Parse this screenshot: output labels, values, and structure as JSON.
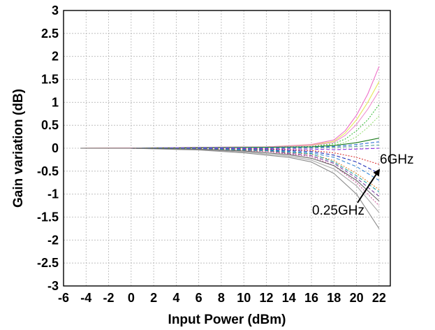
{
  "chart_data": {
    "type": "line",
    "title": "",
    "xlabel": "Input Power (dBm)",
    "ylabel": "Gain variation (dB)",
    "xlim": [
      -6,
      23
    ],
    "ylim": [
      -3,
      3
    ],
    "xticks": [
      -6,
      -4,
      -2,
      0,
      2,
      4,
      6,
      8,
      10,
      12,
      14,
      16,
      18,
      20,
      22
    ],
    "yticks": [
      3,
      2.5,
      2,
      1.5,
      1,
      0.5,
      0,
      -0.5,
      -1,
      -1.5,
      -2,
      -2.5,
      -3
    ],
    "ytick_labels": [
      "3",
      "2.5",
      "2",
      "1.5",
      "1",
      "0.5",
      "0",
      "-0.5",
      "-1",
      "-1.5",
      "-2",
      "-2.5",
      "-3"
    ],
    "grid": true,
    "annotations": [
      {
        "text": "6GHz",
        "x": 22.1,
        "y": -0.27
      },
      {
        "text": "0.25GHz",
        "x": 17.3,
        "y": -1.4
      }
    ],
    "series": [
      {
        "color": "#ee6fc8",
        "style": "solid",
        "x": [
          -4.5,
          0,
          6,
          12,
          16,
          18,
          19,
          20,
          21,
          22
        ],
        "y": [
          0,
          0.005,
          0.02,
          0.03,
          0.08,
          0.18,
          0.38,
          0.72,
          1.18,
          1.78
        ]
      },
      {
        "color": "#e6e65a",
        "style": "solid",
        "x": [
          -4.5,
          0,
          6,
          12,
          16,
          18,
          19,
          20,
          21,
          22
        ],
        "y": [
          0,
          0.005,
          0.02,
          0.03,
          0.07,
          0.15,
          0.33,
          0.62,
          1.0,
          1.45
        ]
      },
      {
        "color": "#f08fd0",
        "style": "solid",
        "x": [
          -4.5,
          0,
          6,
          12,
          16,
          18,
          19,
          20,
          21,
          22
        ],
        "y": [
          0,
          0.005,
          0.02,
          0.03,
          0.06,
          0.13,
          0.28,
          0.52,
          0.85,
          1.25
        ]
      },
      {
        "color": "#3fbf3f",
        "style": "dotted",
        "x": [
          -4.5,
          0,
          6,
          12,
          16,
          18,
          19,
          20,
          21,
          22
        ],
        "y": [
          0,
          0.0,
          0.01,
          0.02,
          0.04,
          0.1,
          0.2,
          0.38,
          0.62,
          0.95
        ]
      },
      {
        "color": "#9be07a",
        "style": "dotted",
        "x": [
          -4.5,
          0,
          6,
          12,
          16,
          18,
          19,
          20,
          21,
          22
        ],
        "y": [
          0,
          0.0,
          0.01,
          0.02,
          0.03,
          0.07,
          0.13,
          0.25,
          0.45,
          0.7
        ]
      },
      {
        "color": "#1a7a1a",
        "style": "solid",
        "x": [
          -4.5,
          0,
          6,
          12,
          16,
          18,
          20,
          22
        ],
        "y": [
          0,
          0.0,
          0.01,
          0.02,
          0.03,
          0.06,
          0.12,
          0.22
        ]
      },
      {
        "color": "#2b6cd4",
        "style": "dashed",
        "x": [
          -4.5,
          0,
          6,
          12,
          16,
          18,
          20,
          22
        ],
        "y": [
          0,
          0.0,
          0.01,
          0.01,
          0.02,
          0.04,
          0.08,
          0.14
        ]
      },
      {
        "color": "#4a9a9a",
        "style": "dashed",
        "x": [
          -4.5,
          0,
          6,
          12,
          16,
          18,
          20,
          22
        ],
        "y": [
          0,
          0.0,
          0.0,
          0.0,
          0.01,
          0.02,
          0.04,
          0.07
        ]
      },
      {
        "color": "#8a2be2",
        "style": "dashed",
        "x": [
          -4.5,
          0,
          6,
          12,
          16,
          18,
          20,
          22
        ],
        "y": [
          0,
          0.0,
          0.0,
          -0.01,
          -0.02,
          -0.03,
          -0.02,
          0.0
        ]
      },
      {
        "color": "#d93636",
        "style": "dotted",
        "x": [
          -4.5,
          0,
          6,
          12,
          16,
          18,
          20,
          22
        ],
        "y": [
          0,
          0.0,
          -0.01,
          -0.02,
          -0.05,
          -0.1,
          -0.2,
          -0.35
        ]
      },
      {
        "color": "#1f2fb8",
        "style": "dashed",
        "x": [
          -4.5,
          0,
          6,
          12,
          16,
          18,
          20,
          22
        ],
        "y": [
          0,
          0.0,
          -0.01,
          -0.03,
          -0.07,
          -0.15,
          -0.3,
          -0.55
        ]
      },
      {
        "color": "#3a8ad6",
        "style": "dashed",
        "x": [
          -4.5,
          0,
          6,
          12,
          16,
          18,
          20,
          22
        ],
        "y": [
          0,
          0.0,
          -0.01,
          -0.04,
          -0.1,
          -0.2,
          -0.4,
          -0.7
        ]
      },
      {
        "color": "#e08a30",
        "style": "dotted",
        "x": [
          -4.5,
          0,
          6,
          12,
          16,
          18,
          20,
          22
        ],
        "y": [
          0,
          0.0,
          -0.02,
          -0.05,
          -0.13,
          -0.27,
          -0.55,
          -0.9
        ]
      },
      {
        "color": "#7b3fa0",
        "style": "dashed",
        "x": [
          -4.5,
          0,
          6,
          12,
          16,
          18,
          20,
          22
        ],
        "y": [
          0,
          0.0,
          -0.02,
          -0.06,
          -0.16,
          -0.33,
          -0.65,
          -1.05
        ]
      },
      {
        "color": "#c85a9a",
        "style": "dotted",
        "x": [
          -4.5,
          0,
          6,
          12,
          16,
          18,
          20,
          22
        ],
        "y": [
          0,
          0.0,
          -0.02,
          -0.07,
          -0.18,
          -0.38,
          -0.75,
          -1.25
        ]
      },
      {
        "color": "#2aa0a0",
        "style": "dashed",
        "x": [
          -4.5,
          0,
          6,
          12,
          16,
          18,
          20,
          22
        ],
        "y": [
          0,
          0.0,
          -0.02,
          -0.05,
          -0.12,
          -0.3,
          -0.6,
          -0.95
        ]
      },
      {
        "color": "#8c8c8c",
        "style": "solid",
        "x": [
          -4.5,
          0,
          6,
          10,
          14,
          16,
          18,
          20,
          22
        ],
        "y": [
          0,
          0.0,
          -0.04,
          -0.1,
          -0.2,
          -0.3,
          -0.55,
          -1.0,
          -1.75
        ]
      },
      {
        "color": "#a9a9a9",
        "style": "solid",
        "x": [
          -4.5,
          0,
          6,
          10,
          14,
          16,
          18,
          20,
          22
        ],
        "y": [
          0,
          0.0,
          -0.03,
          -0.08,
          -0.17,
          -0.26,
          -0.45,
          -0.82,
          -1.4
        ]
      },
      {
        "color": "#666666",
        "style": "solid",
        "x": [
          -4.5,
          0,
          6,
          10,
          14,
          16,
          18,
          20,
          22
        ],
        "y": [
          0,
          0.0,
          -0.02,
          -0.06,
          -0.14,
          -0.22,
          -0.38,
          -0.7,
          -1.15
        ]
      }
    ]
  }
}
